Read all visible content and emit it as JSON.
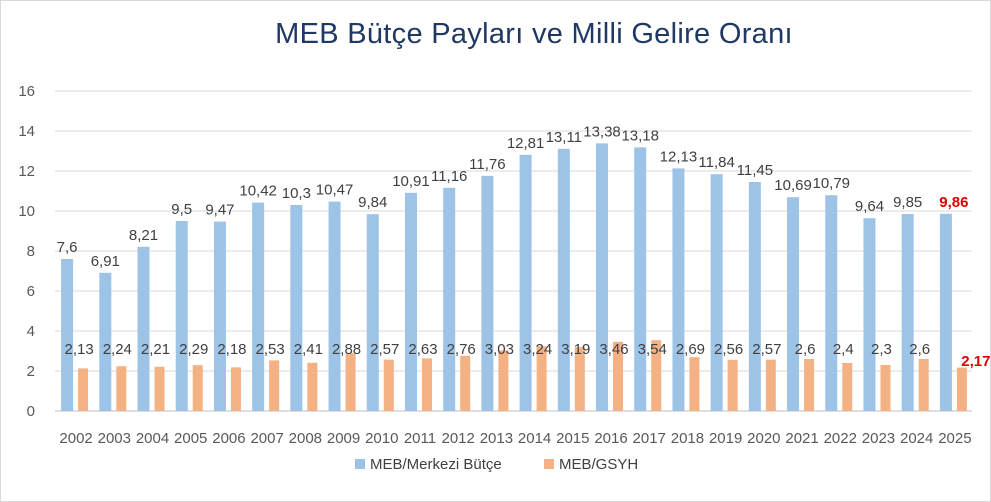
{
  "chart_data": {
    "type": "bar",
    "title": "MEB Bütçe Payları ve Milli Gelire Oranı",
    "xlabel": "",
    "ylabel": "",
    "ylim": [
      0,
      16
    ],
    "yticks": [
      "0",
      "2",
      "4",
      "6",
      "8",
      "10",
      "12",
      "14",
      "16"
    ],
    "grid": true,
    "legend_position": "bottom",
    "highlight_color": "#e00000",
    "categories": [
      "2002",
      "2003",
      "2004",
      "2005",
      "2006",
      "2007",
      "2008",
      "2009",
      "2010",
      "2011",
      "2012",
      "2013",
      "2014",
      "2015",
      "2016",
      "2017",
      "2018",
      "2019",
      "2020",
      "2021",
      "2022",
      "2023",
      "2024",
      "2025"
    ],
    "series": [
      {
        "name": "MEB/Merkezi Bütçe",
        "color": "#9dc3e6",
        "values": [
          7.6,
          6.91,
          8.21,
          9.5,
          9.47,
          10.42,
          10.3,
          10.47,
          9.84,
          10.91,
          11.16,
          11.76,
          12.81,
          13.11,
          13.38,
          13.18,
          12.13,
          11.84,
          11.45,
          10.69,
          10.79,
          9.64,
          9.85,
          9.86
        ],
        "labels": [
          "7,6",
          "6,91",
          "8,21",
          "9,5",
          "9,47",
          "10,42",
          "10,3",
          "10,47",
          "9,84",
          "10,91",
          "11,16",
          "11,76",
          "12,81",
          "13,11",
          "13,38",
          "13,18",
          "12,13",
          "11,84",
          "11,45",
          "10,69",
          "10,79",
          "9,64",
          "9,85",
          "9,86"
        ]
      },
      {
        "name": "MEB/GSYH",
        "color": "#f4b183",
        "values": [
          2.13,
          2.24,
          2.21,
          2.29,
          2.18,
          2.53,
          2.41,
          2.88,
          2.57,
          2.63,
          2.76,
          3.03,
          3.24,
          3.19,
          3.46,
          3.54,
          2.69,
          2.56,
          2.57,
          2.6,
          2.4,
          2.3,
          2.6,
          2.17
        ],
        "labels": [
          "2,13",
          "2,24",
          "2,21",
          "2,29",
          "2,18",
          "2,53",
          "2,41",
          "2,88",
          "2,57",
          "2,63",
          "2,76",
          "3,03",
          "3,24",
          "3,19",
          "3,46",
          "3,54",
          "2,69",
          "2,56",
          "2,57",
          "2,6",
          "2,4",
          "2,3",
          "2,6",
          "2,17"
        ]
      }
    ]
  }
}
